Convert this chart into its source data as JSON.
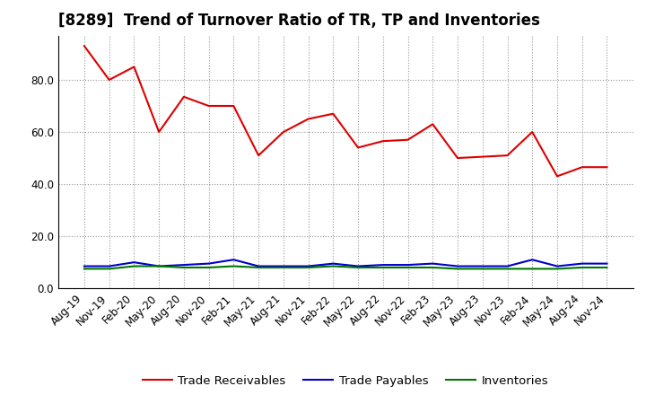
{
  "title": "[8289]  Trend of Turnover Ratio of TR, TP and Inventories",
  "x_labels": [
    "Aug-19",
    "Nov-19",
    "Feb-20",
    "May-20",
    "Aug-20",
    "Nov-20",
    "Feb-21",
    "May-21",
    "Aug-21",
    "Nov-21",
    "Feb-22",
    "May-22",
    "Aug-22",
    "Nov-22",
    "Feb-23",
    "May-23",
    "Aug-23",
    "Nov-23",
    "Feb-24",
    "May-24",
    "Aug-24",
    "Nov-24"
  ],
  "trade_receivables": [
    93.0,
    80.0,
    85.0,
    60.0,
    73.5,
    70.0,
    70.0,
    51.0,
    60.0,
    65.0,
    67.0,
    54.0,
    56.5,
    57.0,
    63.0,
    50.0,
    50.5,
    51.0,
    60.0,
    43.0,
    46.5,
    46.5
  ],
  "trade_payables": [
    8.5,
    8.5,
    10.0,
    8.5,
    9.0,
    9.5,
    11.0,
    8.5,
    8.5,
    8.5,
    9.5,
    8.5,
    9.0,
    9.0,
    9.5,
    8.5,
    8.5,
    8.5,
    11.0,
    8.5,
    9.5,
    9.5
  ],
  "inventories": [
    7.5,
    7.5,
    8.5,
    8.5,
    8.0,
    8.0,
    8.5,
    8.0,
    8.0,
    8.0,
    8.5,
    8.0,
    8.0,
    8.0,
    8.0,
    7.5,
    7.5,
    7.5,
    7.5,
    7.5,
    8.0,
    8.0
  ],
  "tr_color": "#dd0000",
  "tp_color": "#0000cc",
  "inv_color": "#007700",
  "bg_color": "#ffffff",
  "plot_bg_color": "#ffffff",
  "grid_color": "#999999",
  "ylim": [
    0.0,
    97.0
  ],
  "yticks": [
    0.0,
    20.0,
    40.0,
    60.0,
    80.0
  ],
  "legend_labels": [
    "Trade Receivables",
    "Trade Payables",
    "Inventories"
  ],
  "title_fontsize": 12,
  "axis_fontsize": 8.5,
  "legend_fontsize": 9.5
}
